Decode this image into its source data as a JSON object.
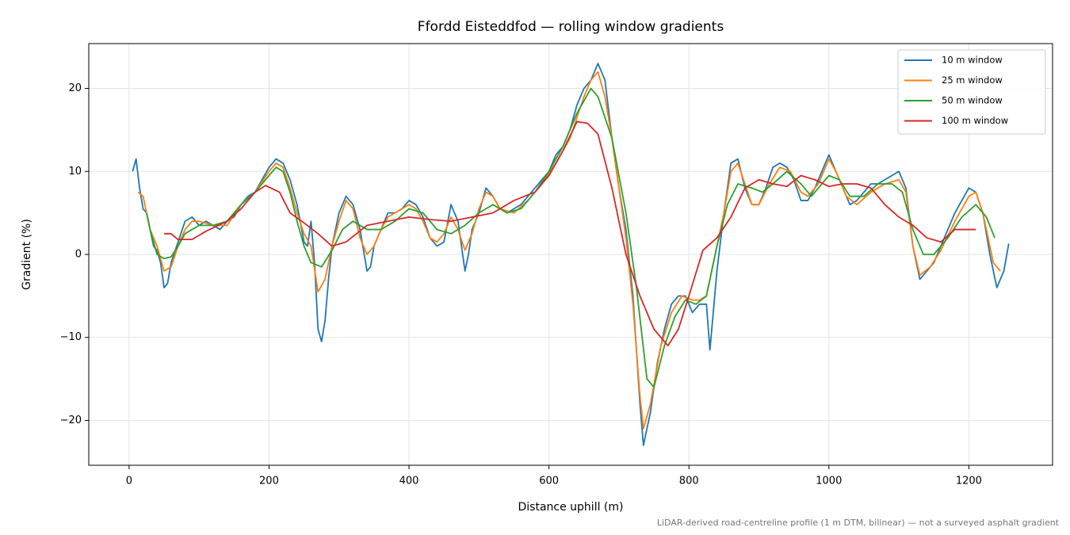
{
  "chart_data": {
    "type": "line",
    "title": "Ffordd Eisteddfod — rolling window gradients",
    "xlabel": "Distance uphill (m)",
    "ylabel": "Gradient (%)",
    "note": "LiDAR-derived road-centreline profile (1 m DTM, bilinear) — not a surveyed asphalt gradient",
    "xlim": [
      -57.6,
      1319.6
    ],
    "xticks": [
      0,
      200,
      400,
      600,
      800,
      1000,
      1200
    ],
    "ylim": [
      -25.4,
      25.4
    ],
    "yticks": [
      {
        "value": -20,
        "label": "−20"
      },
      {
        "value": -10,
        "label": "−10"
      },
      0,
      10,
      20
    ],
    "grid": true,
    "legend": "upper right",
    "series": [
      {
        "name": "10 m window",
        "color": "#1f77b4",
        "x": [
          5,
          10,
          15,
          20,
          25,
          30,
          35,
          40,
          45,
          50,
          55,
          60,
          70,
          80,
          90,
          100,
          110,
          120,
          130,
          140,
          150,
          160,
          170,
          180,
          190,
          200,
          210,
          220,
          230,
          240,
          250,
          255,
          260,
          265,
          270,
          275,
          280,
          285,
          290,
          300,
          310,
          320,
          330,
          340,
          345,
          350,
          360,
          370,
          380,
          390,
          400,
          410,
          420,
          430,
          440,
          450,
          460,
          470,
          480,
          485,
          490,
          500,
          510,
          520,
          530,
          540,
          550,
          560,
          570,
          580,
          590,
          600,
          610,
          620,
          630,
          640,
          650,
          660,
          670,
          680,
          690,
          700,
          710,
          720,
          730,
          735,
          745,
          755,
          765,
          775,
          785,
          795,
          805,
          815,
          825,
          830,
          840,
          850,
          860,
          870,
          880,
          890,
          900,
          910,
          920,
          930,
          940,
          950,
          960,
          970,
          980,
          990,
          1000,
          1010,
          1020,
          1030,
          1040,
          1050,
          1060,
          1070,
          1080,
          1090,
          1100,
          1110,
          1120,
          1130,
          1140,
          1150,
          1160,
          1170,
          1180,
          1190,
          1200,
          1210,
          1220,
          1230,
          1240,
          1250,
          1257
        ],
        "values": [
          10,
          11.5,
          8,
          5.5,
          5,
          3,
          1,
          0.5,
          -1,
          -4,
          -3.5,
          -1,
          1.5,
          4,
          4.5,
          3.5,
          4,
          3.5,
          3,
          4,
          4.5,
          6,
          7,
          7.5,
          9,
          10.5,
          11.5,
          11,
          9,
          6,
          1.5,
          1,
          4,
          -1,
          -9,
          -10.5,
          -8,
          -3,
          1,
          5,
          7,
          6,
          3,
          -2,
          -1.5,
          1,
          3,
          5,
          5,
          5.5,
          6.5,
          6,
          4.5,
          2,
          1,
          1.5,
          6,
          4,
          -2,
          0,
          3,
          5,
          8,
          7,
          5.5,
          5,
          5.5,
          6,
          7,
          8,
          9,
          10,
          12,
          13,
          15,
          18,
          20,
          21,
          23,
          21,
          14,
          8,
          3,
          -5,
          -18,
          -23,
          -19,
          -13,
          -9,
          -6,
          -5,
          -5,
          -7,
          -6,
          -6,
          -11.5,
          -2,
          5,
          11,
          11.5,
          8,
          6,
          6,
          8,
          10.5,
          11,
          10.5,
          9,
          6.5,
          6.5,
          8,
          10,
          12,
          10,
          8,
          6,
          6.5,
          7.5,
          8.5,
          8.5,
          9,
          9.5,
          10,
          8,
          1,
          -3,
          -2,
          -1,
          1,
          3,
          5,
          6.5,
          8,
          7.5,
          5,
          0,
          -4,
          -2,
          1.3
        ]
      },
      {
        "name": "25 m window",
        "color": "#ff7f0e",
        "x": [
          13,
          20,
          25,
          30,
          40,
          50,
          60,
          70,
          80,
          90,
          100,
          120,
          140,
          160,
          180,
          200,
          210,
          220,
          230,
          240,
          250,
          260,
          270,
          280,
          290,
          300,
          310,
          320,
          330,
          340,
          350,
          360,
          370,
          380,
          400,
          410,
          420,
          430,
          440,
          450,
          460,
          470,
          480,
          490,
          500,
          510,
          520,
          530,
          550,
          570,
          590,
          610,
          630,
          650,
          660,
          670,
          680,
          690,
          700,
          710,
          720,
          730,
          735,
          745,
          760,
          775,
          790,
          805,
          815,
          825,
          835,
          850,
          860,
          870,
          880,
          890,
          900,
          915,
          930,
          945,
          960,
          970,
          985,
          1000,
          1010,
          1025,
          1040,
          1060,
          1080,
          1100,
          1110,
          1120,
          1130,
          1145,
          1160,
          1180,
          1200,
          1210,
          1220,
          1235,
          1245
        ],
        "values": [
          7.5,
          7,
          5,
          3,
          1,
          -2,
          -1.5,
          1,
          3,
          4,
          4,
          3.5,
          3.5,
          6,
          7.5,
          10,
          11,
          10.5,
          8,
          5,
          2.5,
          1,
          -4.5,
          -3,
          1,
          4,
          6.5,
          5.5,
          2,
          0,
          1,
          3,
          4.5,
          5,
          6,
          5.5,
          4,
          2,
          1.5,
          2.5,
          4.5,
          3,
          0.5,
          2.5,
          5.5,
          7.5,
          7,
          5.5,
          5,
          6.5,
          8.5,
          11,
          14,
          19,
          21,
          22,
          19,
          14,
          8,
          2,
          -6,
          -17,
          -21,
          -18,
          -11,
          -7,
          -5,
          -5.5,
          -5.5,
          -5,
          -1,
          5,
          10,
          11,
          8.5,
          6,
          6,
          8.5,
          10.5,
          10,
          7.5,
          7,
          8.5,
          11.5,
          10,
          7,
          6,
          7.5,
          8.5,
          9,
          7.5,
          1,
          -2.5,
          -1.5,
          0.5,
          4,
          7,
          7.5,
          5,
          -1,
          -2
        ]
      },
      {
        "name": "50 m window",
        "color": "#2ca02c",
        "x": [
          25,
          30,
          40,
          50,
          60,
          70,
          80,
          100,
          120,
          140,
          160,
          180,
          200,
          210,
          220,
          230,
          240,
          250,
          260,
          275,
          290,
          305,
          320,
          340,
          360,
          380,
          400,
          420,
          440,
          460,
          480,
          500,
          520,
          540,
          560,
          580,
          600,
          620,
          640,
          660,
          670,
          690,
          710,
          725,
          740,
          750,
          765,
          780,
          795,
          810,
          825,
          840,
          855,
          870,
          890,
          905,
          920,
          940,
          960,
          975,
          990,
          1000,
          1015,
          1030,
          1050,
          1070,
          1090,
          1105,
          1120,
          1135,
          1150,
          1170,
          1190,
          1210,
          1225,
          1237
        ],
        "values": [
          5,
          3,
          0,
          -0.5,
          -0.3,
          1,
          2.5,
          3.5,
          3.5,
          4,
          6,
          7.5,
          9.5,
          10.5,
          10,
          7.5,
          4,
          1,
          -1,
          -1.5,
          0.5,
          3,
          4,
          3,
          3,
          4,
          5.5,
          5,
          3,
          2.5,
          3.5,
          5,
          6,
          5,
          5.5,
          7.5,
          10,
          13,
          17,
          20,
          19,
          14,
          5,
          -4,
          -15,
          -16,
          -11,
          -7.5,
          -5.5,
          -6,
          -5,
          1,
          6,
          8.5,
          8,
          7.5,
          8.5,
          10,
          8.5,
          7,
          8.5,
          9.5,
          9,
          7,
          7,
          8.5,
          8.5,
          7.5,
          3,
          0,
          0,
          2,
          4.5,
          6,
          4.5,
          2
        ]
      },
      {
        "name": "100 m window",
        "color": "#d62728",
        "x": [
          50,
          60,
          70,
          90,
          110,
          140,
          160,
          180,
          195,
          215,
          230,
          250,
          270,
          290,
          310,
          340,
          370,
          400,
          430,
          460,
          490,
          520,
          550,
          580,
          600,
          620,
          640,
          655,
          670,
          690,
          710,
          730,
          750,
          770,
          785,
          800,
          820,
          840,
          860,
          880,
          900,
          920,
          940,
          960,
          980,
          1000,
          1020,
          1040,
          1060,
          1080,
          1100,
          1120,
          1140,
          1160,
          1180,
          1200,
          1210
        ],
        "values": [
          2.5,
          2.5,
          1.8,
          1.8,
          2.8,
          4,
          5.5,
          7.5,
          8.3,
          7.5,
          5,
          3.8,
          2.5,
          1,
          1.5,
          3.5,
          4,
          4.5,
          4.2,
          4,
          4.5,
          5,
          6.5,
          7.5,
          9.5,
          12.5,
          16,
          15.8,
          14.5,
          8,
          0,
          -5,
          -9,
          -11,
          -9,
          -5,
          0.5,
          2,
          4.5,
          8,
          9,
          8.5,
          8.2,
          9.5,
          9,
          8.2,
          8.5,
          8.5,
          8,
          6,
          4.5,
          3.5,
          2,
          1.5,
          3,
          3,
          3
        ]
      }
    ]
  }
}
